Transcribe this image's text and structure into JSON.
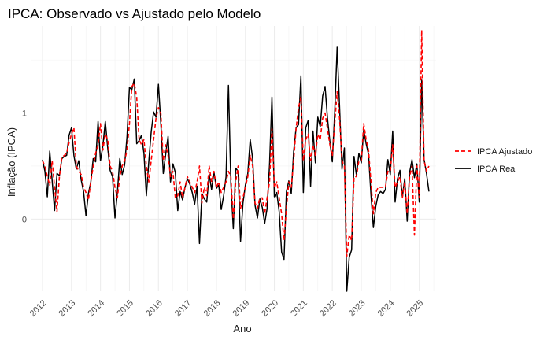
{
  "chart_data": {
    "type": "line",
    "title": "IPCA: Observado vs Ajustado pelo Modelo",
    "xlabel": "Ano",
    "ylabel": "Inflação (IPCA)",
    "x_ticks": [
      "2012",
      "2013",
      "2014",
      "2015",
      "2016",
      "2017",
      "2018",
      "2019",
      "2020",
      "2021",
      "2022",
      "2023",
      "2024",
      "2025"
    ],
    "y_ticks": [
      {
        "value": 0,
        "label": "0"
      },
      {
        "value": 1,
        "label": "1"
      }
    ],
    "ylim": [
      -0.68,
      1.82
    ],
    "xlim": [
      2011.62,
      2025.58
    ],
    "grid": true,
    "legend_position": "right",
    "series": [
      {
        "name": "IPCA Real",
        "color": "#000000",
        "style": "solid",
        "start_year": 2012,
        "monthly_values": [
          0.56,
          0.45,
          0.21,
          0.64,
          0.36,
          0.08,
          0.43,
          0.41,
          0.57,
          0.59,
          0.6,
          0.79,
          0.86,
          0.6,
          0.47,
          0.55,
          0.37,
          0.26,
          0.03,
          0.24,
          0.35,
          0.57,
          0.54,
          0.92,
          0.55,
          0.69,
          0.92,
          0.67,
          0.46,
          0.4,
          0.01,
          0.25,
          0.57,
          0.42,
          0.51,
          0.78,
          1.24,
          1.22,
          1.32,
          0.71,
          0.74,
          0.79,
          0.62,
          0.22,
          0.54,
          0.82,
          1.01,
          0.96,
          1.27,
          0.9,
          0.43,
          0.61,
          0.78,
          0.35,
          0.52,
          0.44,
          0.08,
          0.26,
          0.18,
          0.3,
          0.38,
          0.33,
          0.25,
          0.14,
          0.31,
          -0.23,
          0.24,
          0.19,
          0.16,
          0.42,
          0.28,
          0.44,
          0.29,
          0.32,
          0.09,
          0.22,
          0.4,
          1.26,
          0.33,
          -0.09,
          0.48,
          0.45,
          -0.21,
          0.15,
          0.32,
          0.43,
          0.75,
          0.57,
          0.13,
          0.01,
          0.19,
          0.11,
          -0.04,
          0.1,
          0.51,
          1.15,
          0.21,
          0.25,
          0.07,
          -0.31,
          -0.38,
          0.26,
          0.36,
          0.24,
          0.64,
          0.86,
          0.89,
          1.35,
          0.25,
          0.86,
          0.93,
          0.31,
          0.83,
          0.53,
          0.96,
          0.87,
          1.16,
          1.25,
          0.95,
          0.73,
          0.54,
          1.01,
          1.62,
          1.06,
          0.47,
          0.67,
          -0.68,
          -0.36,
          -0.29,
          0.59,
          0.41,
          0.62,
          0.53,
          0.84,
          0.71,
          0.61,
          0.23,
          -0.08,
          0.12,
          0.23,
          0.26,
          0.24,
          0.28,
          0.56,
          0.42,
          0.83,
          0.16,
          0.38,
          0.46,
          0.21,
          0.38,
          -0.02,
          0.44,
          0.56,
          0.39,
          0.52,
          0.16,
          1.31,
          0.56,
          0.43,
          0.26
        ]
      },
      {
        "name": "IPCA Ajustado",
        "color": "#ff0000",
        "style": "dashed",
        "start_year": 2012,
        "monthly_values": [
          0.55,
          0.5,
          0.4,
          0.32,
          0.55,
          0.3,
          0.07,
          0.4,
          0.58,
          0.6,
          0.62,
          0.72,
          0.8,
          0.86,
          0.5,
          0.45,
          0.42,
          0.3,
          0.25,
          0.18,
          0.35,
          0.5,
          0.62,
          0.7,
          0.9,
          0.65,
          0.8,
          0.75,
          0.5,
          0.45,
          0.3,
          0.2,
          0.4,
          0.5,
          0.55,
          0.65,
          0.9,
          1.25,
          1.28,
          1.15,
          0.75,
          0.7,
          0.75,
          0.5,
          0.35,
          0.55,
          0.75,
          0.95,
          1.05,
          1.0,
          0.55,
          0.7,
          0.6,
          0.4,
          0.45,
          0.2,
          0.22,
          0.35,
          0.2,
          0.3,
          0.4,
          0.35,
          0.3,
          0.25,
          0.35,
          0.5,
          0.15,
          0.3,
          0.22,
          0.5,
          0.35,
          0.45,
          0.3,
          0.35,
          0.25,
          0.3,
          0.35,
          0.45,
          0.4,
          0.0,
          0.35,
          0.5,
          0.1,
          0.2,
          0.3,
          0.4,
          0.6,
          0.5,
          0.15,
          0.1,
          0.2,
          0.2,
          0.05,
          0.2,
          0.35,
          0.85,
          0.3,
          0.35,
          0.2,
          0.05,
          -0.2,
          0.1,
          0.35,
          0.3,
          0.55,
          0.85,
          1.05,
          1.15,
          0.55,
          0.75,
          0.8,
          0.55,
          0.7,
          0.6,
          0.8,
          0.75,
          0.95,
          1.0,
          0.85,
          0.7,
          0.6,
          0.9,
          1.2,
          0.95,
          0.55,
          0.5,
          -0.35,
          -0.15,
          -0.2,
          0.4,
          0.4,
          0.55,
          0.55,
          0.9,
          0.75,
          0.65,
          0.35,
          0.05,
          0.25,
          0.3,
          0.3,
          0.3,
          0.3,
          0.45,
          0.45,
          0.7,
          0.3,
          0.35,
          0.4,
          0.2,
          0.35,
          0.05,
          0.4,
          0.5,
          -0.15,
          0.5,
          0.2,
          1.78,
          0.55,
          0.45,
          0.5
        ]
      }
    ],
    "legend": [
      {
        "name": "IPCA Ajustado",
        "color": "#ff0000",
        "style": "dashed"
      },
      {
        "name": "IPCA Real",
        "color": "#000000",
        "style": "solid"
      }
    ]
  }
}
